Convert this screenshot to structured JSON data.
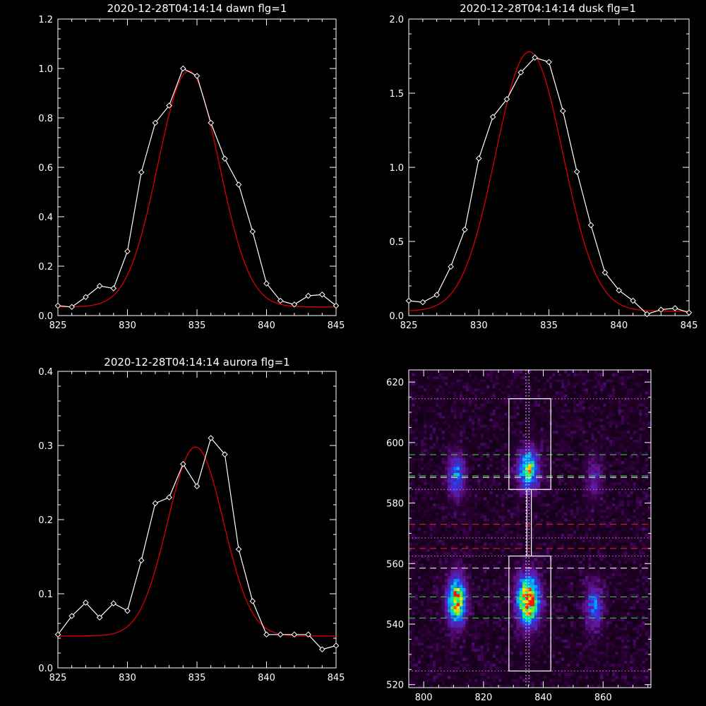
{
  "colors": {
    "background": "#000000",
    "axes": "#ffffff",
    "observed": "#ffffff",
    "fit": "#dd0000",
    "green_line": "#33dd33",
    "red_line": "#ee2222",
    "white_line": "#ffffff",
    "pink_line": "#ff66ff"
  },
  "chart_data": [
    {
      "type": "line",
      "title": "2020-12-28T04:14:14 dawn flg=1",
      "xlim": [
        825,
        845
      ],
      "ylim": [
        0,
        1.2
      ],
      "xticks": [
        "825",
        "830",
        "835",
        "840",
        "845"
      ],
      "yticks": [
        "0.0",
        "0.2",
        "0.4",
        "0.6",
        "0.8",
        "1.0",
        "1.2"
      ],
      "yticks_values": [
        0,
        0.2,
        0.4,
        0.6,
        0.8,
        1.0,
        1.2
      ],
      "grid": false,
      "series": [
        {
          "x": [
            825,
            826,
            827,
            828,
            829,
            830,
            831,
            832,
            833,
            834,
            835,
            836,
            837,
            838,
            839,
            840,
            841,
            842,
            843,
            844,
            845
          ],
          "y": [
            0.04,
            0.035,
            0.075,
            0.12,
            0.11,
            0.26,
            0.58,
            0.78,
            0.85,
            1.0,
            0.97,
            0.78,
            0.635,
            0.53,
            0.34,
            0.13,
            0.06,
            0.045,
            0.08,
            0.085,
            0.04
          ],
          "markers": "diamond"
        },
        {
          "fit": "gaussian",
          "amplitude": 0.955,
          "center": 834.4,
          "sigma": 2.2,
          "offset": 0.035
        }
      ]
    },
    {
      "type": "line",
      "title": "2020-12-28T04:14:14 dusk flg=1",
      "xlim": [
        825,
        845
      ],
      "ylim": [
        0,
        2.0
      ],
      "xticks": [
        "825",
        "830",
        "835",
        "840",
        "845"
      ],
      "yticks": [
        "0.0",
        "0.5",
        "1.0",
        "1.5",
        "2.0"
      ],
      "yticks_values": [
        0,
        0.5,
        1.0,
        1.5,
        2.0
      ],
      "grid": false,
      "series": [
        {
          "x": [
            825,
            826,
            827,
            828,
            829,
            830,
            831,
            832,
            833,
            834,
            835,
            836,
            837,
            838,
            839,
            840,
            841,
            842,
            843,
            844,
            845
          ],
          "y": [
            0.1,
            0.09,
            0.14,
            0.33,
            0.58,
            1.06,
            1.34,
            1.46,
            1.64,
            1.74,
            1.71,
            1.38,
            0.97,
            0.61,
            0.29,
            0.17,
            0.1,
            0.01,
            0.04,
            0.05,
            0.02
          ],
          "markers": "diamond"
        },
        {
          "fit": "gaussian",
          "amplitude": 1.75,
          "center": 833.6,
          "sigma": 2.4,
          "offset": 0.03
        }
      ]
    },
    {
      "type": "line",
      "title": "2020-12-28T04:14:14 aurora flg=1",
      "xlim": [
        825,
        845
      ],
      "ylim": [
        0,
        0.4
      ],
      "xticks": [
        "825",
        "830",
        "835",
        "840",
        "845"
      ],
      "yticks": [
        "0.0",
        "0.1",
        "0.2",
        "0.3",
        "0.4"
      ],
      "yticks_values": [
        0,
        0.1,
        0.2,
        0.3,
        0.4
      ],
      "grid": false,
      "series": [
        {
          "x": [
            825,
            826,
            827,
            828,
            829,
            830,
            831,
            832,
            833,
            834,
            835,
            836,
            837,
            838,
            839,
            840,
            841,
            842,
            843,
            844,
            845
          ],
          "y": [
            0.045,
            0.07,
            0.088,
            0.068,
            0.087,
            0.077,
            0.145,
            0.222,
            0.23,
            0.275,
            0.245,
            0.31,
            0.288,
            0.16,
            0.09,
            0.045,
            0.045,
            0.045,
            0.045,
            0.025,
            0.03
          ],
          "markers": "diamond"
        },
        {
          "fit": "gaussian",
          "amplitude": 0.255,
          "center": 834.9,
          "sigma": 2.0,
          "offset": 0.043
        }
      ]
    },
    {
      "type": "heatmap",
      "xlim": [
        795,
        876
      ],
      "ylim": [
        519,
        624
      ],
      "xticks": [
        "800",
        "820",
        "840",
        "860"
      ],
      "xticks_values": [
        800,
        820,
        840,
        860
      ],
      "yticks": [
        "520",
        "540",
        "560",
        "580",
        "600",
        "620"
      ],
      "yticks_values": [
        520,
        540,
        560,
        580,
        600,
        620
      ],
      "emission_blobs": [
        {
          "x": 811,
          "y": 548,
          "sx": 2.2,
          "sy": 5.5,
          "amp": 0.85
        },
        {
          "x": 811,
          "y": 589,
          "sx": 2.0,
          "sy": 5.0,
          "amp": 0.45
        },
        {
          "x": 835,
          "y": 548,
          "sx": 2.6,
          "sy": 5.5,
          "amp": 1.0
        },
        {
          "x": 835,
          "y": 591,
          "sx": 2.4,
          "sy": 4.5,
          "amp": 0.7
        },
        {
          "x": 857,
          "y": 546,
          "sx": 2.0,
          "sy": 5.0,
          "amp": 0.4
        },
        {
          "x": 857,
          "y": 589,
          "sx": 2.0,
          "sy": 5.0,
          "amp": 0.22
        }
      ],
      "boxes": [
        {
          "x0": 828.5,
          "x1": 842.5,
          "y0": 584.5,
          "y1": 614.5
        },
        {
          "x0": 828.5,
          "x1": 842.5,
          "y0": 524.5,
          "y1": 562.5
        }
      ],
      "center_strip": {
        "x0": 834.5,
        "x1": 836.0,
        "y0": 562.5,
        "y1": 584.5
      },
      "vertical_dotted_lines": [
        834.2,
        835.2
      ],
      "horizontal_lines": [
        {
          "y": 614.5,
          "color": "pink",
          "style": "dotted"
        },
        {
          "y": 596,
          "color": "green",
          "style": "dashed"
        },
        {
          "y": 589,
          "color": "green",
          "style": "dashed"
        },
        {
          "y": 588.5,
          "color": "white",
          "style": "dashed"
        },
        {
          "y": 584.5,
          "color": "pink",
          "style": "dotted"
        },
        {
          "y": 573,
          "color": "red",
          "style": "dashed"
        },
        {
          "y": 568.5,
          "color": "pink",
          "style": "dotted"
        },
        {
          "y": 565,
          "color": "red",
          "style": "dashed"
        },
        {
          "y": 562.5,
          "color": "pink",
          "style": "dotted"
        },
        {
          "y": 558.5,
          "color": "white",
          "style": "dashed"
        },
        {
          "y": 549,
          "color": "green",
          "style": "dashed"
        },
        {
          "y": 542,
          "color": "green",
          "style": "dashed"
        },
        {
          "y": 524.5,
          "color": "pink",
          "style": "dotted"
        }
      ]
    }
  ]
}
